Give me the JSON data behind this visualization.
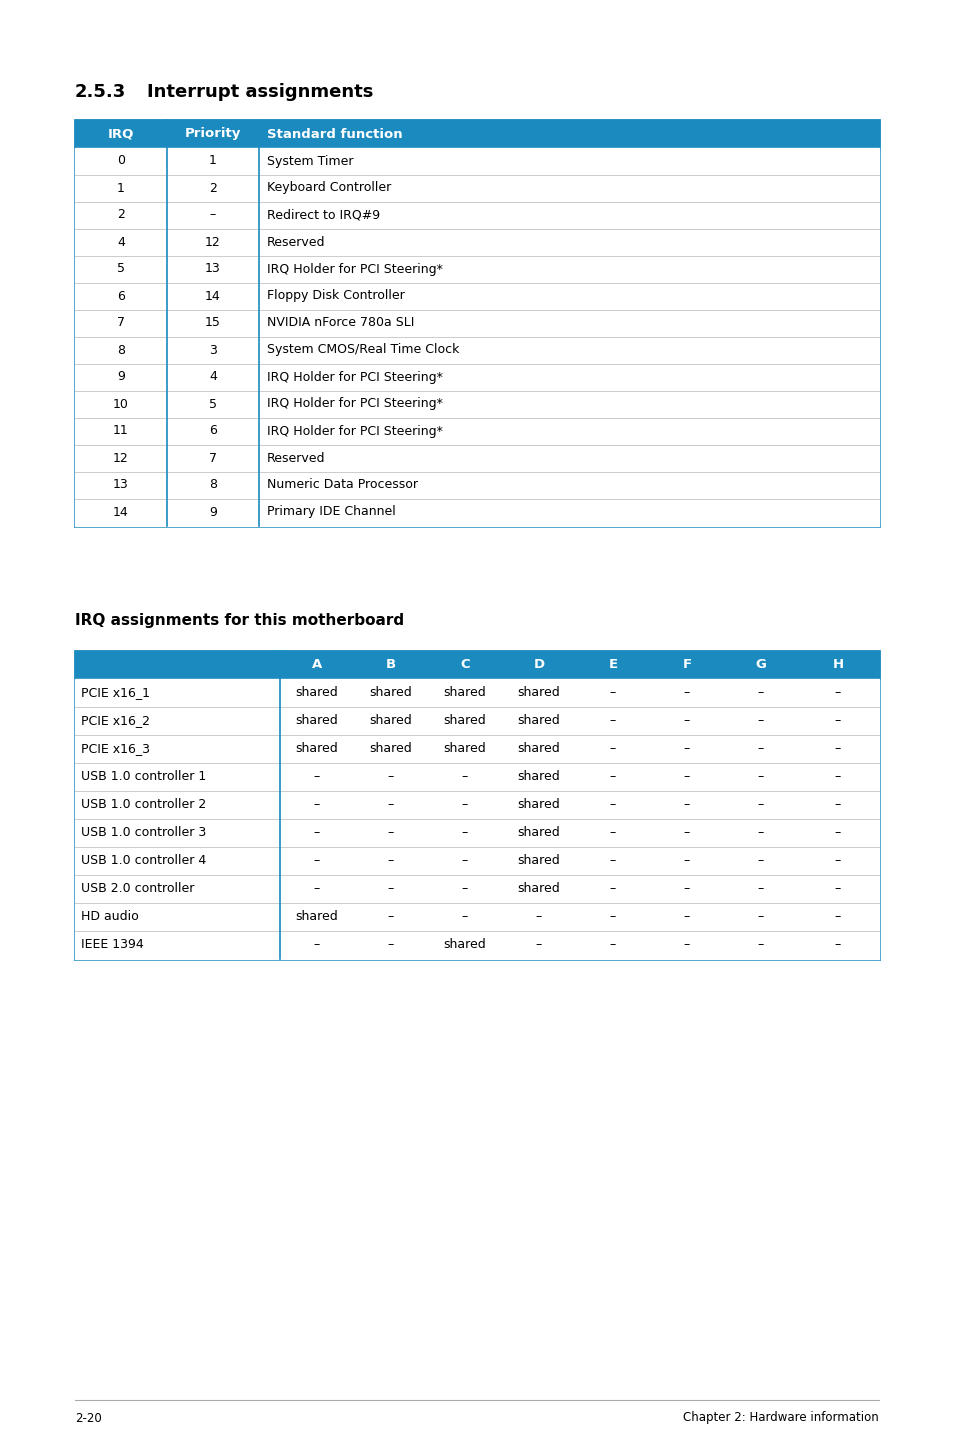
{
  "page_bg": "#ffffff",
  "header_bg": "#1a8abf",
  "header_text_color": "#ffffff",
  "row_bg": "#ffffff",
  "border_color": "#1a8abf",
  "divider_color": "#cccccc",
  "text_color": "#000000",
  "section1_title_num": "2.5.3",
  "section1_title_text": "Interrupt assignments",
  "table1_headers": [
    "IRQ",
    "Priority",
    "Standard function"
  ],
  "table1_rows": [
    [
      "0",
      "1",
      "System Timer"
    ],
    [
      "1",
      "2",
      "Keyboard Controller"
    ],
    [
      "2",
      "–",
      "Redirect to IRQ#9"
    ],
    [
      "4",
      "12",
      "Reserved"
    ],
    [
      "5",
      "13",
      "IRQ Holder for PCI Steering*"
    ],
    [
      "6",
      "14",
      "Floppy Disk Controller"
    ],
    [
      "7",
      "15",
      "NVIDIA nForce 780a SLI"
    ],
    [
      "8",
      "3",
      "System CMOS/Real Time Clock"
    ],
    [
      "9",
      "4",
      "IRQ Holder for PCI Steering*"
    ],
    [
      "10",
      "5",
      "IRQ Holder for PCI Steering*"
    ],
    [
      "11",
      "6",
      "IRQ Holder for PCI Steering*"
    ],
    [
      "12",
      "7",
      "Reserved"
    ],
    [
      "13",
      "8",
      "Numeric Data Processor"
    ],
    [
      "14",
      "9",
      "Primary IDE Channel"
    ]
  ],
  "section2_title": "IRQ assignments for this motherboard",
  "table2_headers": [
    "",
    "A",
    "B",
    "C",
    "D",
    "E",
    "F",
    "G",
    "H"
  ],
  "table2_rows": [
    [
      "PCIE x16_1",
      "shared",
      "shared",
      "shared",
      "shared",
      "–",
      "–",
      "–",
      "–"
    ],
    [
      "PCIE x16_2",
      "shared",
      "shared",
      "shared",
      "shared",
      "–",
      "–",
      "–",
      "–"
    ],
    [
      "PCIE x16_3",
      "shared",
      "shared",
      "shared",
      "shared",
      "–",
      "–",
      "–",
      "–"
    ],
    [
      "USB 1.0 controller 1",
      "–",
      "–",
      "–",
      "shared",
      "–",
      "–",
      "–",
      "–"
    ],
    [
      "USB 1.0 controller 2",
      "–",
      "–",
      "–",
      "shared",
      "–",
      "–",
      "–",
      "–"
    ],
    [
      "USB 1.0 controller 3",
      "–",
      "–",
      "–",
      "shared",
      "–",
      "–",
      "–",
      "–"
    ],
    [
      "USB 1.0 controller 4",
      "–",
      "–",
      "–",
      "shared",
      "–",
      "–",
      "–",
      "–"
    ],
    [
      "USB 2.0 controller",
      "–",
      "–",
      "–",
      "shared",
      "–",
      "–",
      "–",
      "–"
    ],
    [
      "HD audio",
      "shared",
      "–",
      "–",
      "–",
      "–",
      "–",
      "–",
      "–"
    ],
    [
      "IEEE 1394",
      "–",
      "–",
      "shared",
      "–",
      "–",
      "–",
      "–",
      "–"
    ]
  ],
  "footer_left": "2-20",
  "footer_right": "Chapter 2: Hardware information"
}
